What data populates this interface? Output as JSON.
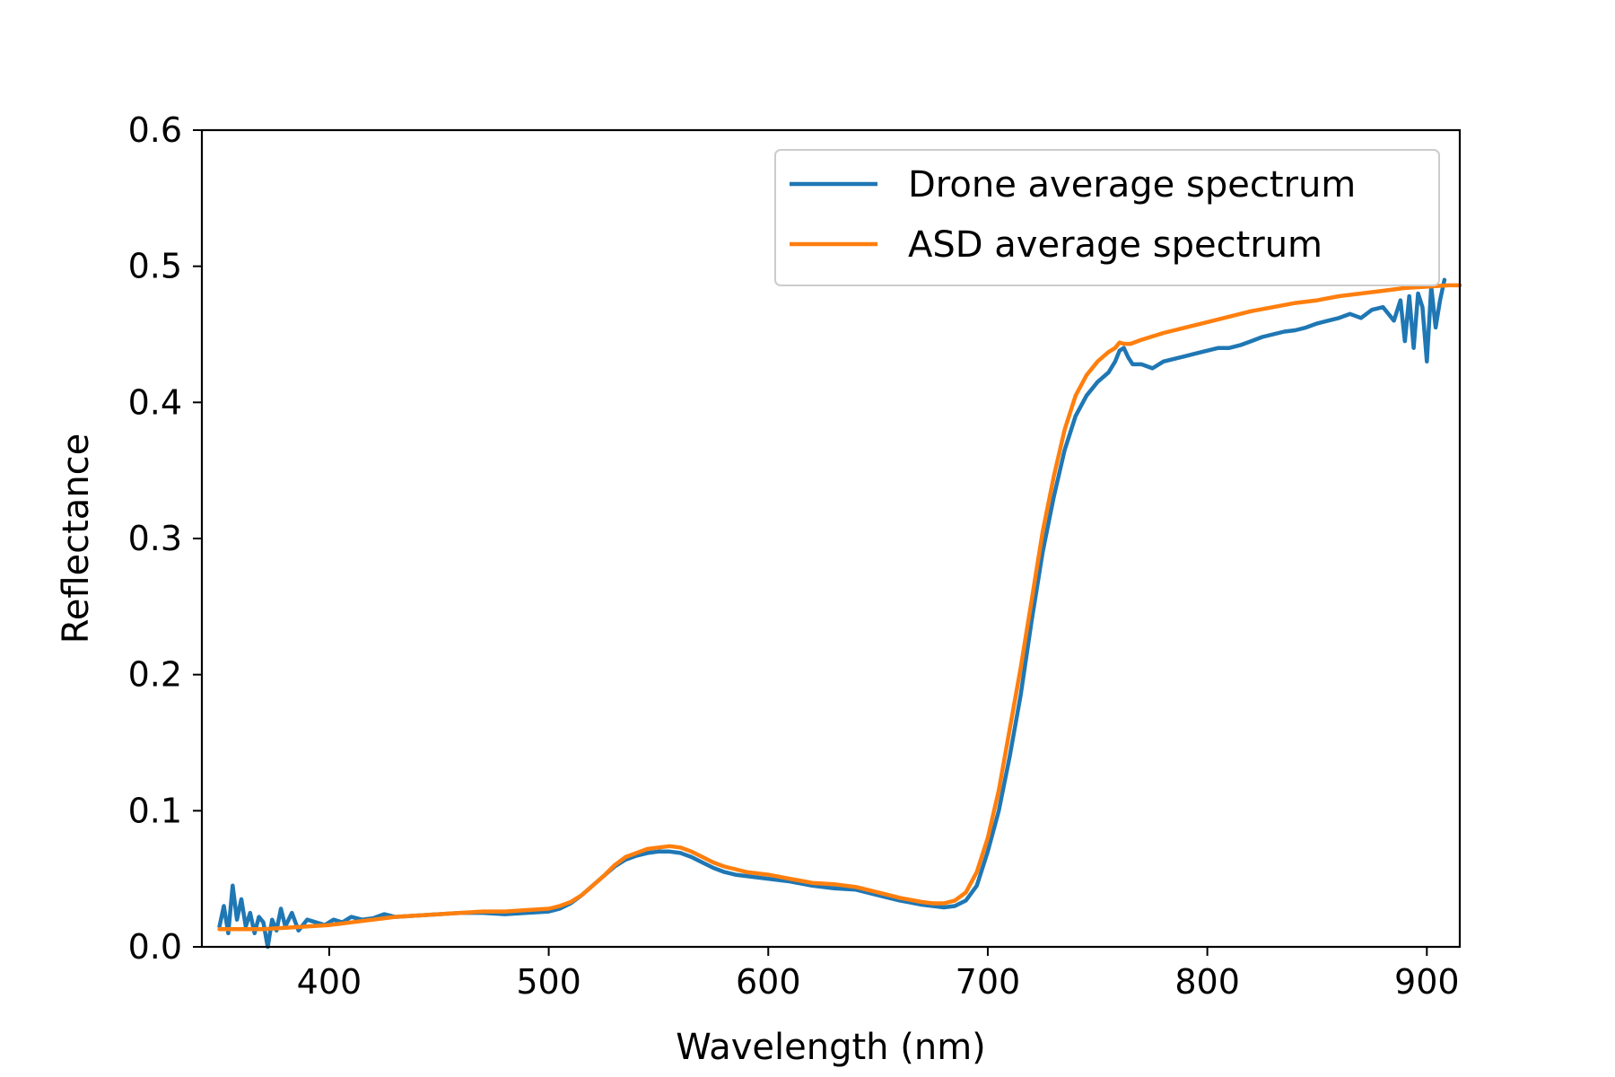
{
  "chart_data": {
    "type": "line",
    "title": "",
    "xlabel": "Wavelength (nm)",
    "ylabel": "Reflectance",
    "xlim": [
      342,
      915
    ],
    "ylim": [
      0.0,
      0.6
    ],
    "xticks": [
      400,
      500,
      600,
      700,
      800,
      900
    ],
    "xtick_labels": [
      "400",
      "500",
      "600",
      "700",
      "800",
      "900"
    ],
    "yticks": [
      0.0,
      0.1,
      0.2,
      0.3,
      0.4,
      0.5,
      0.6
    ],
    "ytick_labels": [
      "0.0",
      "0.1",
      "0.2",
      "0.3",
      "0.4",
      "0.5",
      "0.6"
    ],
    "grid": false,
    "legend_position": "top-right",
    "series": [
      {
        "name": "Drone average spectrum",
        "color": "#1f77b4",
        "x": [
          350,
          352,
          354,
          356,
          358,
          360,
          362,
          364,
          366,
          368,
          370,
          372,
          374,
          376,
          378,
          380,
          383,
          386,
          390,
          394,
          398,
          402,
          406,
          410,
          415,
          420,
          425,
          430,
          440,
          450,
          460,
          470,
          480,
          490,
          500,
          505,
          510,
          515,
          520,
          525,
          530,
          535,
          540,
          545,
          550,
          555,
          560,
          565,
          570,
          575,
          580,
          585,
          590,
          600,
          610,
          620,
          630,
          640,
          650,
          660,
          670,
          680,
          685,
          690,
          695,
          700,
          705,
          710,
          715,
          720,
          725,
          730,
          735,
          740,
          745,
          750,
          755,
          758,
          760,
          762,
          764,
          766,
          770,
          775,
          780,
          785,
          790,
          795,
          800,
          805,
          810,
          815,
          820,
          825,
          830,
          835,
          840,
          845,
          850,
          855,
          860,
          865,
          870,
          875,
          880,
          885,
          888,
          890,
          892,
          894,
          896,
          898,
          900,
          902,
          904,
          906,
          908
        ],
        "y": [
          0.015,
          0.03,
          0.01,
          0.045,
          0.02,
          0.035,
          0.015,
          0.025,
          0.01,
          0.022,
          0.018,
          0.0,
          0.02,
          0.012,
          0.028,
          0.015,
          0.025,
          0.012,
          0.02,
          0.018,
          0.016,
          0.02,
          0.018,
          0.022,
          0.02,
          0.021,
          0.024,
          0.022,
          0.023,
          0.024,
          0.025,
          0.025,
          0.024,
          0.025,
          0.026,
          0.028,
          0.032,
          0.038,
          0.045,
          0.052,
          0.059,
          0.064,
          0.067,
          0.069,
          0.07,
          0.07,
          0.069,
          0.066,
          0.062,
          0.058,
          0.055,
          0.053,
          0.052,
          0.05,
          0.048,
          0.045,
          0.043,
          0.042,
          0.038,
          0.034,
          0.031,
          0.029,
          0.03,
          0.034,
          0.045,
          0.07,
          0.1,
          0.14,
          0.185,
          0.24,
          0.29,
          0.33,
          0.365,
          0.39,
          0.405,
          0.415,
          0.422,
          0.43,
          0.438,
          0.44,
          0.433,
          0.428,
          0.428,
          0.425,
          0.43,
          0.432,
          0.434,
          0.436,
          0.438,
          0.44,
          0.44,
          0.442,
          0.445,
          0.448,
          0.45,
          0.452,
          0.453,
          0.455,
          0.458,
          0.46,
          0.462,
          0.465,
          0.462,
          0.468,
          0.47,
          0.46,
          0.475,
          0.445,
          0.478,
          0.44,
          0.48,
          0.47,
          0.43,
          0.485,
          0.455,
          0.475,
          0.49
        ]
      },
      {
        "name": "ASD average spectrum",
        "color": "#ff7f0e",
        "x": [
          350,
          360,
          370,
          380,
          390,
          400,
          410,
          420,
          430,
          440,
          450,
          460,
          470,
          480,
          490,
          500,
          505,
          510,
          515,
          520,
          525,
          530,
          535,
          540,
          545,
          550,
          555,
          560,
          565,
          570,
          575,
          580,
          585,
          590,
          600,
          610,
          620,
          630,
          640,
          650,
          660,
          670,
          675,
          680,
          685,
          690,
          695,
          700,
          705,
          710,
          715,
          720,
          725,
          730,
          735,
          740,
          745,
          750,
          755,
          758,
          760,
          762,
          765,
          770,
          780,
          790,
          800,
          810,
          820,
          830,
          840,
          850,
          860,
          870,
          880,
          890,
          900,
          910,
          915
        ],
        "y": [
          0.013,
          0.013,
          0.013,
          0.014,
          0.015,
          0.016,
          0.018,
          0.02,
          0.022,
          0.023,
          0.024,
          0.025,
          0.026,
          0.026,
          0.027,
          0.028,
          0.03,
          0.033,
          0.038,
          0.045,
          0.052,
          0.06,
          0.066,
          0.069,
          0.072,
          0.073,
          0.074,
          0.073,
          0.07,
          0.066,
          0.062,
          0.059,
          0.057,
          0.055,
          0.053,
          0.05,
          0.047,
          0.046,
          0.044,
          0.04,
          0.036,
          0.033,
          0.032,
          0.032,
          0.034,
          0.04,
          0.055,
          0.08,
          0.115,
          0.16,
          0.205,
          0.255,
          0.305,
          0.345,
          0.38,
          0.405,
          0.42,
          0.43,
          0.437,
          0.44,
          0.444,
          0.443,
          0.443,
          0.446,
          0.451,
          0.455,
          0.459,
          0.463,
          0.467,
          0.47,
          0.473,
          0.475,
          0.478,
          0.48,
          0.482,
          0.484,
          0.485,
          0.486,
          0.486
        ]
      }
    ]
  }
}
